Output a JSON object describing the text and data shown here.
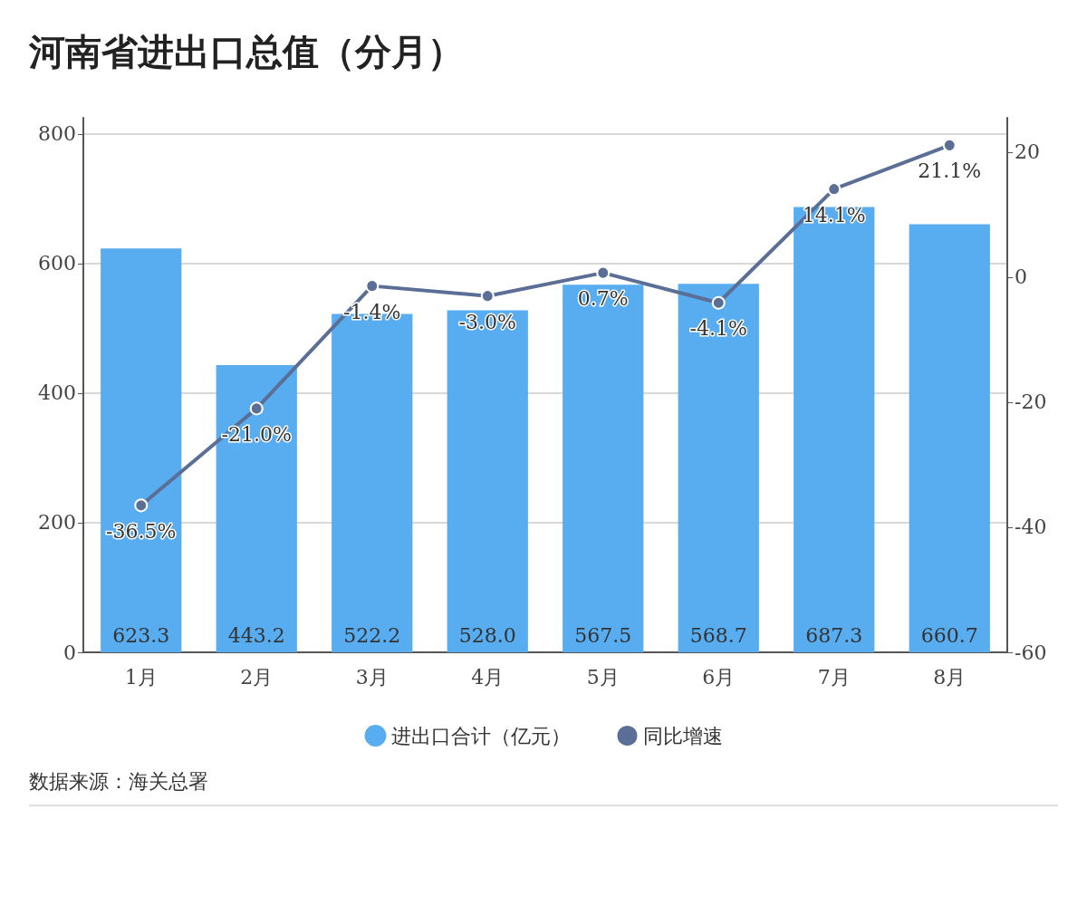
{
  "chart_data": {
    "type": "bar",
    "title": "河南省进出口总值（分月）",
    "categories": [
      "1月",
      "2月",
      "3月",
      "4月",
      "5月",
      "6月",
      "7月",
      "8月"
    ],
    "series": [
      {
        "name": "进出口合计（亿元）",
        "color": "#58acf0",
        "values": [
          623.3,
          443.2,
          522.2,
          528.0,
          567.5,
          568.7,
          687.3,
          660.7
        ],
        "value_labels": [
          "623.3",
          "443.2",
          "522.2",
          "528.0",
          "567.5",
          "568.7",
          "687.3",
          "660.7"
        ]
      },
      {
        "name": "同比增速",
        "type": "line",
        "axis": "y2",
        "color": "#5a6e96",
        "values": [
          -36.5,
          -21.0,
          -1.4,
          -3.0,
          0.7,
          -4.1,
          14.1,
          21.1
        ],
        "value_labels": [
          "-36.5%",
          "-21.0%",
          "-1.4%",
          "-3.0%",
          "0.7%",
          "-4.1%",
          "14.1%",
          "21.1%"
        ]
      }
    ],
    "ylim": [
      0,
      825
    ],
    "yticks": [
      0,
      200,
      400,
      600,
      800
    ],
    "y2lim": [
      -60,
      25.5
    ],
    "y2ticks": [
      -60,
      -40,
      -20,
      0,
      20
    ],
    "grid": "y",
    "legend": "bottom",
    "marker": "circle",
    "line_style": "solid",
    "annotations": [
      "数据来源：海关总署"
    ]
  }
}
